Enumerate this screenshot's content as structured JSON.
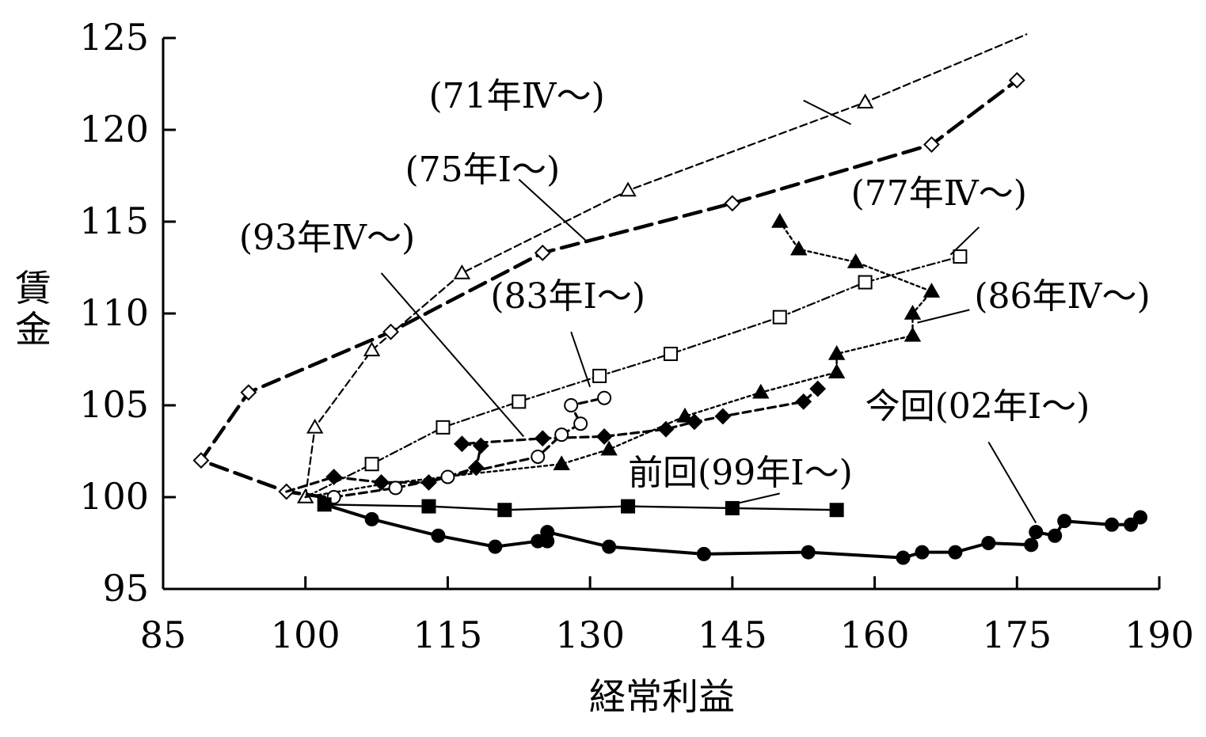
{
  "chart_data": {
    "type": "line",
    "xlabel": "経常利益",
    "ylabel": "賃金",
    "xlim": [
      85,
      190
    ],
    "ylim": [
      95,
      125
    ],
    "xticks": [
      "85",
      "100",
      "115",
      "130",
      "145",
      "160",
      "175",
      "190"
    ],
    "yticks": [
      "95",
      "100",
      "105",
      "110",
      "115",
      "120",
      "125"
    ],
    "grid": false,
    "series": [
      {
        "name": "(71年Ⅳ～)",
        "style": "thin-dashed",
        "marker": "open-triangle",
        "points": [
          [
            100,
            100
          ],
          [
            101,
            103.8
          ],
          [
            107,
            108
          ],
          [
            116.5,
            112.2
          ],
          [
            134,
            116.7
          ],
          [
            159,
            121.5
          ],
          [
            176,
            125.2
          ]
        ],
        "markers": [
          [
            100,
            100
          ],
          [
            101,
            103.8
          ],
          [
            107,
            108
          ],
          [
            116.5,
            112.2
          ],
          [
            134,
            116.7
          ],
          [
            159,
            121.5
          ]
        ]
      },
      {
        "name": "(75年Ⅰ～)",
        "style": "thick-dashed",
        "marker": "open-diamond",
        "points": [
          [
            102,
            100
          ],
          [
            98,
            100.3
          ],
          [
            89,
            102
          ],
          [
            94,
            105.7
          ],
          [
            109,
            109
          ],
          [
            125,
            113.3
          ],
          [
            145,
            116
          ],
          [
            166,
            119.2
          ],
          [
            175,
            122.7
          ]
        ],
        "markers": [
          [
            98,
            100.3
          ],
          [
            89,
            102
          ],
          [
            94,
            105.7
          ],
          [
            109,
            109
          ],
          [
            125,
            113.3
          ],
          [
            145,
            116
          ],
          [
            166,
            119.2
          ],
          [
            175,
            122.7
          ]
        ]
      },
      {
        "name": "(77年Ⅳ～)",
        "style": "dash-dot",
        "marker": "open-square",
        "points": [
          [
            100,
            100
          ],
          [
            107,
            101.8
          ],
          [
            114.5,
            103.8
          ],
          [
            122.5,
            105.2
          ],
          [
            131,
            106.6
          ],
          [
            138.5,
            107.8
          ],
          [
            150,
            109.8
          ],
          [
            159,
            111.7
          ],
          [
            169,
            113.1
          ]
        ],
        "markers": [
          [
            107,
            101.8
          ],
          [
            114.5,
            103.8
          ],
          [
            122.5,
            105.2
          ],
          [
            131,
            106.6
          ],
          [
            138.5,
            107.8
          ],
          [
            150,
            109.8
          ],
          [
            159,
            111.7
          ],
          [
            169,
            113.1
          ]
        ]
      },
      {
        "name": "(86年Ⅳ～)",
        "style": "dotted",
        "marker": "filled-triangle",
        "points": [
          [
            100,
            100
          ],
          [
            108,
            100.7
          ],
          [
            118,
            101.3
          ],
          [
            127,
            101.8
          ],
          [
            132,
            102.6
          ],
          [
            140,
            104.4
          ],
          [
            148,
            105.7
          ],
          [
            156,
            106.8
          ],
          [
            156,
            107.8
          ],
          [
            164,
            108.8
          ],
          [
            164,
            110
          ],
          [
            166,
            111.2
          ],
          [
            158,
            112.8
          ],
          [
            152,
            113.5
          ],
          [
            150,
            115
          ]
        ],
        "markers": [
          [
            127,
            101.8
          ],
          [
            132,
            102.6
          ],
          [
            140,
            104.4
          ],
          [
            148,
            105.7
          ],
          [
            156,
            106.8
          ],
          [
            156,
            107.8
          ],
          [
            164,
            108.8
          ],
          [
            164,
            110
          ],
          [
            166,
            111.2
          ],
          [
            158,
            112.8
          ],
          [
            152,
            113.5
          ],
          [
            150,
            115
          ]
        ]
      },
      {
        "name": "(93年Ⅳ～)",
        "style": "dashed",
        "marker": "filled-diamond",
        "points": [
          [
            98,
            100.3
          ],
          [
            103,
            101.1
          ],
          [
            108,
            100.8
          ],
          [
            113,
            100.8
          ],
          [
            118,
            101.6
          ],
          [
            118.5,
            102.8
          ],
          [
            116.5,
            102.9
          ],
          [
            125,
            103.2
          ],
          [
            131.5,
            103.3
          ],
          [
            138,
            103.7
          ],
          [
            141,
            104.1
          ],
          [
            144,
            104.4
          ],
          [
            152.5,
            105.2
          ],
          [
            154,
            105.9
          ]
        ],
        "markers": [
          [
            103,
            101.1
          ],
          [
            108,
            100.8
          ],
          [
            113,
            100.8
          ],
          [
            118,
            101.6
          ],
          [
            118.5,
            102.8
          ],
          [
            116.5,
            102.9
          ],
          [
            125,
            103.2
          ],
          [
            131.5,
            103.3
          ],
          [
            138,
            103.7
          ],
          [
            141,
            104.1
          ],
          [
            144,
            104.4
          ],
          [
            152.5,
            105.2
          ],
          [
            154,
            105.9
          ]
        ]
      },
      {
        "name": "(83年Ⅰ～)",
        "style": "dashed",
        "marker": "open-circle",
        "points": [
          [
            103,
            100
          ],
          [
            109.5,
            100.5
          ],
          [
            115,
            101.1
          ],
          [
            124.5,
            102.2
          ],
          [
            127,
            103.4
          ],
          [
            129,
            104
          ],
          [
            128,
            105
          ],
          [
            131.5,
            105.4
          ]
        ],
        "markers": [
          [
            103,
            100
          ],
          [
            109.5,
            100.5
          ],
          [
            115,
            101.1
          ],
          [
            124.5,
            102.2
          ],
          [
            127,
            103.4
          ],
          [
            129,
            104
          ],
          [
            128,
            105
          ],
          [
            131.5,
            105.4
          ]
        ]
      },
      {
        "name": "前回(99年Ⅰ～)",
        "style": "solid-thin",
        "marker": "filled-square",
        "points": [
          [
            102,
            99.6
          ],
          [
            113,
            99.5
          ],
          [
            121,
            99.3
          ],
          [
            134,
            99.5
          ],
          [
            145,
            99.4
          ],
          [
            156,
            99.3
          ]
        ],
        "markers": [
          [
            102,
            99.6
          ],
          [
            113,
            99.5
          ],
          [
            121,
            99.3
          ],
          [
            134,
            99.5
          ],
          [
            145,
            99.4
          ],
          [
            156,
            99.3
          ]
        ]
      },
      {
        "name": "今回(02年Ⅰ～)",
        "style": "solid-thick",
        "marker": "filled-circle",
        "points": [
          [
            102,
            99.6
          ],
          [
            107,
            98.8
          ],
          [
            114,
            97.9
          ],
          [
            120,
            97.3
          ],
          [
            124.5,
            97.6
          ],
          [
            125.5,
            97.6
          ],
          [
            125.5,
            98.1
          ],
          [
            132,
            97.3
          ],
          [
            142,
            96.9
          ],
          [
            153,
            97
          ],
          [
            163,
            96.7
          ],
          [
            165,
            97
          ],
          [
            168.5,
            97
          ],
          [
            172,
            97.5
          ],
          [
            176.5,
            97.4
          ],
          [
            177,
            98.1
          ],
          [
            179,
            97.9
          ],
          [
            180,
            98.7
          ],
          [
            185,
            98.5
          ],
          [
            187,
            98.5
          ],
          [
            188,
            98.9
          ]
        ],
        "markers": [
          [
            107,
            98.8
          ],
          [
            114,
            97.9
          ],
          [
            120,
            97.3
          ],
          [
            124.5,
            97.6
          ],
          [
            125.5,
            97.6
          ],
          [
            125.5,
            98.1
          ],
          [
            132,
            97.3
          ],
          [
            142,
            96.9
          ],
          [
            153,
            97
          ],
          [
            163,
            96.7
          ],
          [
            165,
            97
          ],
          [
            168.5,
            97
          ],
          [
            172,
            97.5
          ],
          [
            176.5,
            97.4
          ],
          [
            177,
            98.1
          ],
          [
            179,
            97.9
          ],
          [
            180,
            98.7
          ],
          [
            185,
            98.5
          ],
          [
            187,
            98.5
          ],
          [
            188,
            98.9
          ]
        ]
      }
    ],
    "annotations": [
      {
        "text": "(71年Ⅳ～)",
        "label_x": 113,
        "label_y": 121.2,
        "line": [
          [
            152.5,
            121.6
          ],
          [
            157.5,
            120.3
          ]
        ]
      },
      {
        "text": "(75年Ⅰ～)",
        "label_x": 110.5,
        "label_y": 117.2,
        "line": [
          [
            122.5,
            117.3
          ],
          [
            129.5,
            114
          ]
        ]
      },
      {
        "text": "(77年Ⅳ～)",
        "label_x": 157.5,
        "label_y": 115.9,
        "line": [
          [
            171,
            114.7
          ],
          [
            168,
            113.2
          ]
        ]
      },
      {
        "text": "(93年Ⅳ～)",
        "label_x": 93,
        "label_y": 113.5,
        "line": [
          [
            108,
            112.2
          ],
          [
            123,
            103.3
          ]
        ]
      },
      {
        "text": "(83年Ⅰ～)",
        "label_x": 119.5,
        "label_y": 110.3,
        "line": [
          [
            128,
            109
          ],
          [
            130,
            106
          ]
        ]
      },
      {
        "text": "(86年Ⅳ～)",
        "label_x": 170.5,
        "label_y": 110.3,
        "line": [
          [
            170,
            110.2
          ],
          [
            164.5,
            109.5
          ]
        ]
      },
      {
        "text": "今回(02年Ⅰ～)",
        "label_x": 159,
        "label_y": 104.3,
        "line": [
          [
            172,
            103
          ],
          [
            177,
            98.6
          ]
        ]
      },
      {
        "text": "前回(99年Ⅰ～)",
        "label_x": 134,
        "label_y": 100.7,
        "line": [
          [
            145,
            99.6
          ],
          [
            150,
            100.2
          ]
        ]
      }
    ]
  }
}
